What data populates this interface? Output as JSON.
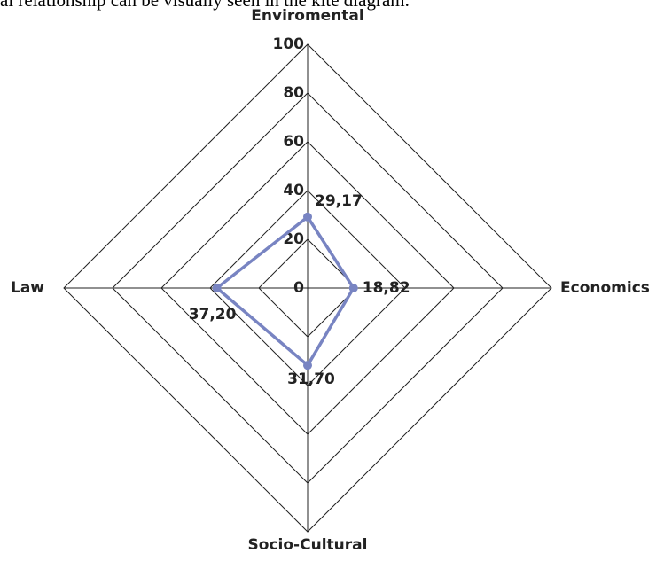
{
  "caption": "al relationship can be visually seen in the kite diagram.",
  "chart_data": {
    "type": "radar",
    "categories": [
      "Enviromental",
      "Economics",
      "Socio-Cultural",
      "Law"
    ],
    "values": [
      29.17,
      18.82,
      31.7,
      37.2
    ],
    "value_labels": [
      "29,17",
      "18,82",
      "31,70",
      "37,20"
    ],
    "color": "#7884c2",
    "rlim": [
      0,
      100
    ],
    "rticks": [
      0,
      20,
      40,
      60,
      80,
      100
    ],
    "grid": true
  }
}
